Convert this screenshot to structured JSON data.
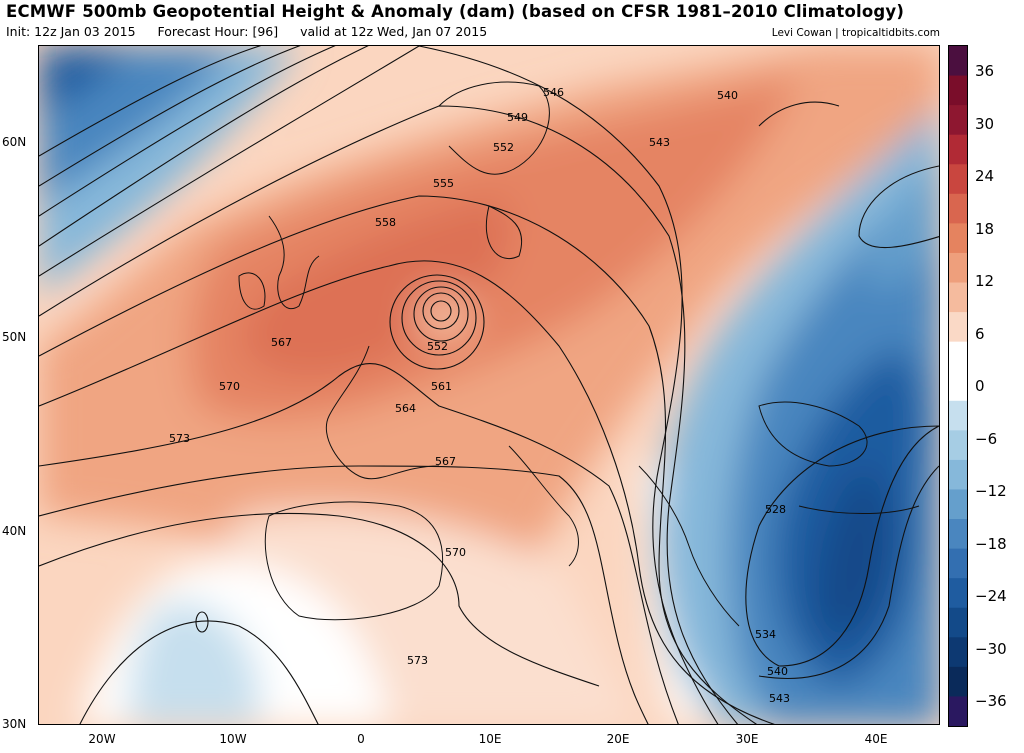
{
  "title": "ECMWF 500mb Geopotential Height & Anomaly (dam) (based on CFSR 1981–2010 Climatology)",
  "subtitle": {
    "init": "Init: 12z Jan 03 2015",
    "forecast_hour": "Forecast Hour: [96]",
    "valid": "valid at 12z Wed, Jan 07 2015"
  },
  "credit": "Levi Cowan | tropicaltidbits.com",
  "axes": {
    "lat_labels": [
      "60N",
      "50N",
      "40N",
      "30N"
    ],
    "lon_labels": [
      "20W",
      "10W",
      "0",
      "10E",
      "20E",
      "30E",
      "40E"
    ]
  },
  "colorbar": {
    "labels": [
      "36",
      "30",
      "24",
      "18",
      "12",
      "6",
      "0",
      "−6",
      "−12",
      "−18",
      "−24",
      "−30",
      "−36"
    ],
    "colors": [
      "#4b0f3f",
      "#7a0d2a",
      "#8e1730",
      "#b12a35",
      "#c9463f",
      "#d9664f",
      "#e5835f",
      "#ee9f7c",
      "#f5bb9e",
      "#fad9c6",
      "#ffffff",
      "#ffffff",
      "#c6dfee",
      "#a6cde4",
      "#86b8da",
      "#659fcc",
      "#4a86bf",
      "#336fb1",
      "#1f5ca0",
      "#134a89",
      "#0d3972",
      "#0a2a5a",
      "#2a1860"
    ]
  },
  "contour_labels": [
    {
      "text": "546"
    },
    {
      "text": "549"
    },
    {
      "text": "552"
    },
    {
      "text": "555"
    },
    {
      "text": "558"
    },
    {
      "text": "552"
    },
    {
      "text": "567"
    },
    {
      "text": "570"
    },
    {
      "text": "573"
    },
    {
      "text": "561"
    },
    {
      "text": "564"
    },
    {
      "text": "567"
    },
    {
      "text": "570"
    },
    {
      "text": "573"
    },
    {
      "text": "540"
    },
    {
      "text": "543"
    },
    {
      "text": "528"
    },
    {
      "text": "534"
    },
    {
      "text": "540"
    },
    {
      "text": "543"
    }
  ]
}
